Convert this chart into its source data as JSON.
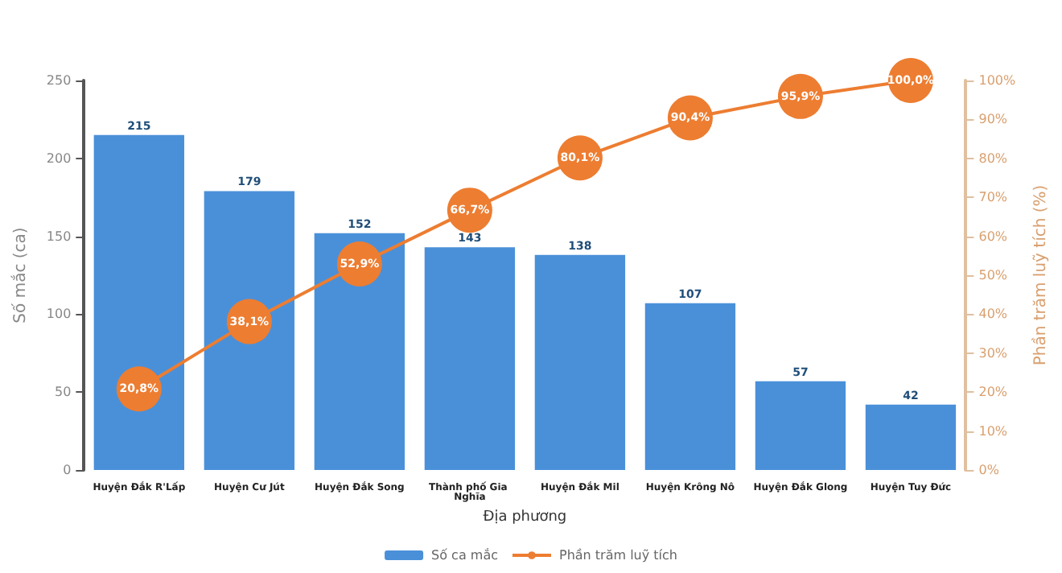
{
  "chart_data": {
    "type": "bar",
    "xlabel": "Địa phương",
    "ylabel": "Số mắc (ca)",
    "y2label": "Phần trăm luỹ tích (%)",
    "categories": [
      "Huyện Đắk R'Lấp",
      "Huyện Cư Jút",
      "Huyện Đắk Song",
      "Thành phố Gia Nghĩa",
      "Huyện Đắk Mil",
      "Huyện Krông Nô",
      "Huyện Đắk Glong",
      "Huyện Tuy Đức"
    ],
    "series": [
      {
        "name": "Số ca mắc",
        "color": "#4a90d9",
        "values": [
          215,
          179,
          152,
          143,
          138,
          107,
          57,
          42
        ],
        "value_labels": [
          "215",
          "179",
          "152",
          "143",
          "138",
          "107",
          "57",
          "42"
        ]
      },
      {
        "name": "Phần trăm luỹ tích",
        "type": "line",
        "axis": "y2",
        "color": "#ed7d31",
        "marker": "circle",
        "values": [
          20.8,
          38.1,
          52.9,
          66.7,
          80.1,
          90.4,
          95.9,
          100.0
        ],
        "value_labels": [
          "20,8%",
          "38,1%",
          "52,9%",
          "66,7%",
          "80,1%",
          "90,4%",
          "95,9%",
          "100,0%"
        ]
      }
    ],
    "ylim": [
      0,
      250
    ],
    "yticks": [
      0,
      50,
      100,
      150,
      200,
      250
    ],
    "y2lim": [
      0,
      100
    ],
    "y2ticks": [
      {
        "value": 0,
        "label": "0%"
      },
      {
        "value": 10,
        "label": "10%"
      },
      {
        "value": 20,
        "label": "20%"
      },
      {
        "value": 30,
        "label": "30%"
      },
      {
        "value": 40,
        "label": "40%"
      },
      {
        "value": 50,
        "label": "50%"
      },
      {
        "value": 60,
        "label": "60%"
      },
      {
        "value": 70,
        "label": "70%"
      },
      {
        "value": 80,
        "label": "80%"
      },
      {
        "value": 90,
        "label": "90%"
      },
      {
        "value": 100,
        "label": "100%"
      }
    ],
    "grid": false,
    "legend": "bottom"
  }
}
